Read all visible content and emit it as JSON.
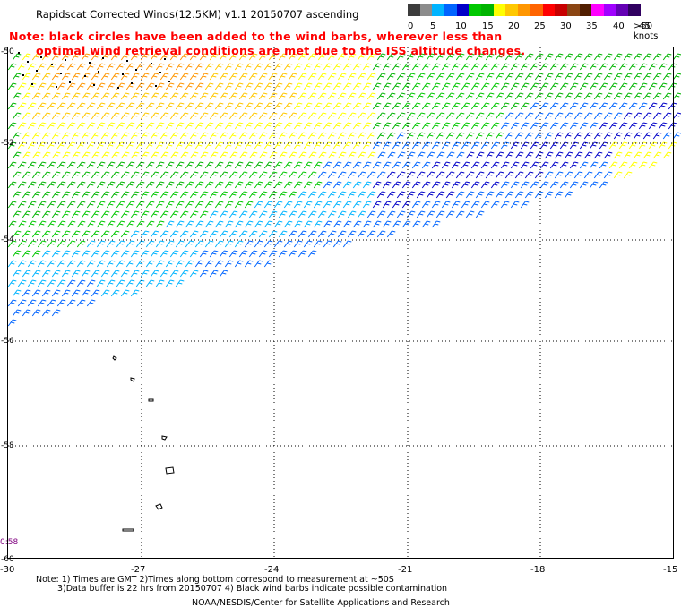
{
  "title": "Rapidscat Corrected Winds(12.5KM) v1.1 20150707 ascending",
  "notes": {
    "line1": "Note: black circles have been added to the wind barbs, wherever less than",
    "line2": "optimal wind retrieval conditions are met due to the ISS altitude changes."
  },
  "colorbar": {
    "colors": [
      "#3c3c3c",
      "#8c8c8c",
      "#00b4ff",
      "#0064ff",
      "#0000c8",
      "#00c800",
      "#00b400",
      "#ffff00",
      "#ffc800",
      "#ff9600",
      "#ff6400",
      "#ff0000",
      "#c80000",
      "#8b4513",
      "#501e00",
      "#ff00ff",
      "#a000ff",
      "#6400b4",
      "#300060"
    ],
    "labels": [
      "0",
      "5",
      "10",
      "15",
      "20",
      "25",
      "30",
      "35",
      "40",
      "45",
      ">50 knots"
    ]
  },
  "map": {
    "lat_labels": [
      "-50",
      "-52",
      "-54",
      "-56",
      "-58",
      "-60"
    ],
    "lon_labels": [
      "-30",
      "-27",
      "-24",
      "-21",
      "-18",
      "-15"
    ],
    "time_label": "0:58"
  },
  "footer": {
    "line1": "Note: 1) Times are GMT 2)Times along bottom correspond to measurement at ~50S",
    "line2": "3)Data buffer is 22 hrs from 20150707 4) Black wind barbs indicate possible contamination",
    "credit": "NOAA/NESDIS/Center for Satellite Applications and Research"
  }
}
